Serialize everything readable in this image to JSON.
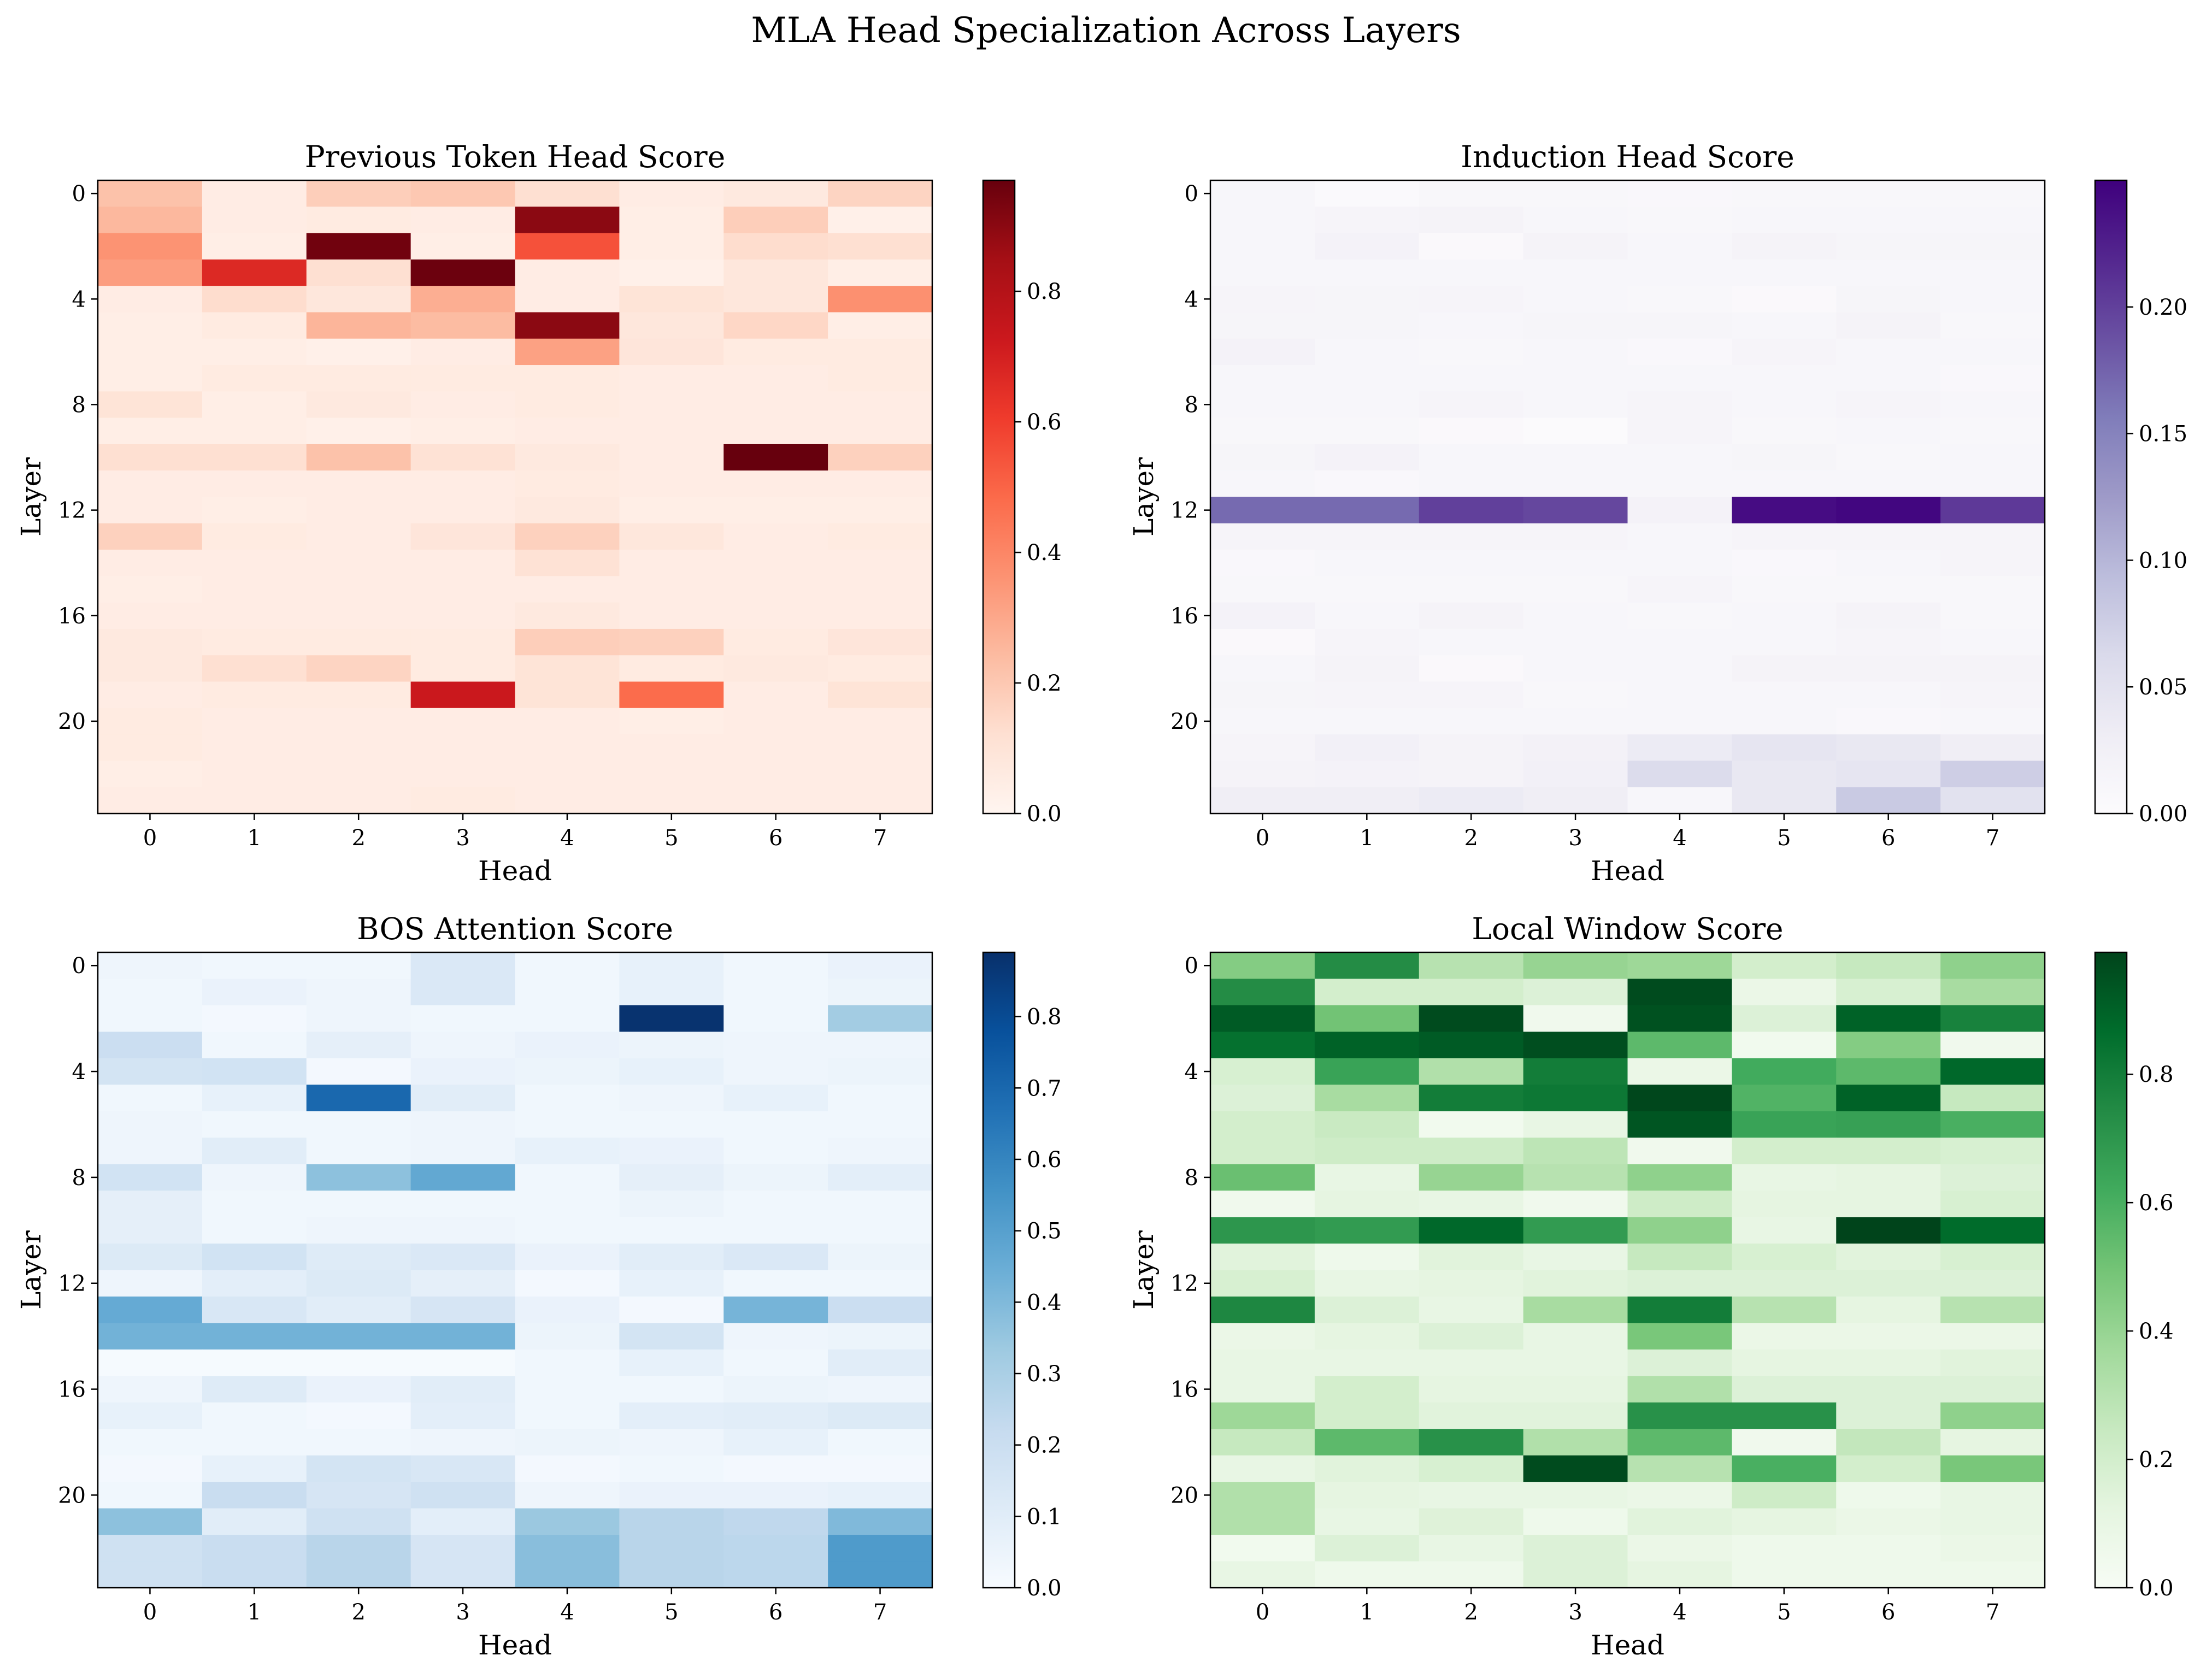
{
  "figure_title": "MLA Head Specialization Across Layers",
  "chart_data": [
    {
      "type": "heatmap",
      "title": "Previous Token Head Score",
      "xlabel": "Head",
      "ylabel": "Layer",
      "colormap": "Reds",
      "colormap_stops": [
        "#fff5f0",
        "#fee0d2",
        "#fcbba1",
        "#fc9272",
        "#fb6a4a",
        "#ef3b2c",
        "#cb181d",
        "#a50f15",
        "#67000d"
      ],
      "clim": [
        0,
        0.97
      ],
      "x_ticks": [
        "0",
        "1",
        "2",
        "3",
        "4",
        "5",
        "6",
        "7"
      ],
      "y_ticks": [
        "0",
        "4",
        "8",
        "12",
        "16",
        "20"
      ],
      "colorbar_ticks": [
        "0.0",
        "0.2",
        "0.4",
        "0.6",
        "0.8"
      ],
      "values": [
        [
          0.22,
          0.05,
          0.18,
          0.2,
          0.12,
          0.05,
          0.07,
          0.16
        ],
        [
          0.25,
          0.05,
          0.06,
          0.05,
          0.9,
          0.04,
          0.18,
          0.03
        ],
        [
          0.36,
          0.04,
          0.95,
          0.04,
          0.55,
          0.04,
          0.13,
          0.12
        ],
        [
          0.33,
          0.67,
          0.12,
          0.96,
          0.05,
          0.03,
          0.08,
          0.04
        ],
        [
          0.05,
          0.13,
          0.08,
          0.28,
          0.05,
          0.1,
          0.08,
          0.37
        ],
        [
          0.04,
          0.06,
          0.26,
          0.24,
          0.9,
          0.08,
          0.15,
          0.04
        ],
        [
          0.04,
          0.04,
          0.03,
          0.05,
          0.32,
          0.09,
          0.06,
          0.06
        ],
        [
          0.04,
          0.06,
          0.06,
          0.06,
          0.06,
          0.05,
          0.05,
          0.06
        ],
        [
          0.1,
          0.04,
          0.07,
          0.05,
          0.06,
          0.05,
          0.05,
          0.05
        ],
        [
          0.04,
          0.04,
          0.03,
          0.04,
          0.05,
          0.05,
          0.05,
          0.05
        ],
        [
          0.12,
          0.12,
          0.22,
          0.11,
          0.07,
          0.05,
          0.97,
          0.17
        ],
        [
          0.05,
          0.05,
          0.05,
          0.05,
          0.06,
          0.05,
          0.05,
          0.05
        ],
        [
          0.05,
          0.04,
          0.05,
          0.05,
          0.07,
          0.04,
          0.04,
          0.04
        ],
        [
          0.17,
          0.06,
          0.05,
          0.09,
          0.17,
          0.08,
          0.05,
          0.06
        ],
        [
          0.05,
          0.05,
          0.05,
          0.05,
          0.11,
          0.05,
          0.05,
          0.05
        ],
        [
          0.04,
          0.05,
          0.05,
          0.05,
          0.05,
          0.05,
          0.05,
          0.05
        ],
        [
          0.05,
          0.05,
          0.05,
          0.05,
          0.07,
          0.05,
          0.05,
          0.05
        ],
        [
          0.07,
          0.06,
          0.06,
          0.06,
          0.18,
          0.17,
          0.06,
          0.09
        ],
        [
          0.07,
          0.12,
          0.16,
          0.06,
          0.1,
          0.06,
          0.07,
          0.06
        ],
        [
          0.05,
          0.06,
          0.06,
          0.73,
          0.1,
          0.48,
          0.05,
          0.1
        ],
        [
          0.06,
          0.05,
          0.05,
          0.05,
          0.05,
          0.04,
          0.05,
          0.05
        ],
        [
          0.06,
          0.05,
          0.05,
          0.05,
          0.05,
          0.05,
          0.05,
          0.05
        ],
        [
          0.04,
          0.05,
          0.05,
          0.05,
          0.05,
          0.05,
          0.05,
          0.05
        ],
        [
          0.05,
          0.05,
          0.05,
          0.06,
          0.05,
          0.05,
          0.05,
          0.05
        ]
      ]
    },
    {
      "type": "heatmap",
      "title": "Induction Head Score",
      "xlabel": "Head",
      "ylabel": "Layer",
      "colormap": "Purples",
      "colormap_stops": [
        "#fcfbfd",
        "#efedf5",
        "#dadaeb",
        "#bcbddc",
        "#9e9ac8",
        "#807dba",
        "#6a51a3",
        "#54278f",
        "#3f007d"
      ],
      "clim": [
        0,
        0.25
      ],
      "x_ticks": [
        "0",
        "1",
        "2",
        "3",
        "4",
        "5",
        "6",
        "7"
      ],
      "y_ticks": [
        "0",
        "4",
        "8",
        "12",
        "16",
        "20"
      ],
      "colorbar_ticks": [
        "0.00",
        "0.05",
        "0.10",
        "0.15",
        "0.20"
      ],
      "values": [
        [
          0.012,
          0.005,
          0.01,
          0.01,
          0.008,
          0.01,
          0.01,
          0.01
        ],
        [
          0.012,
          0.015,
          0.018,
          0.012,
          0.01,
          0.012,
          0.012,
          0.012
        ],
        [
          0.012,
          0.02,
          0.006,
          0.018,
          0.012,
          0.018,
          0.014,
          0.014
        ],
        [
          0.012,
          0.012,
          0.012,
          0.012,
          0.012,
          0.012,
          0.012,
          0.012
        ],
        [
          0.015,
          0.014,
          0.015,
          0.012,
          0.01,
          0.006,
          0.014,
          0.012
        ],
        [
          0.014,
          0.014,
          0.012,
          0.014,
          0.014,
          0.012,
          0.018,
          0.01
        ],
        [
          0.02,
          0.012,
          0.01,
          0.012,
          0.008,
          0.015,
          0.012,
          0.012
        ],
        [
          0.012,
          0.012,
          0.012,
          0.012,
          0.012,
          0.012,
          0.012,
          0.008
        ],
        [
          0.012,
          0.012,
          0.015,
          0.012,
          0.015,
          0.012,
          0.015,
          0.012
        ],
        [
          0.01,
          0.01,
          0.006,
          0.002,
          0.015,
          0.01,
          0.012,
          0.01
        ],
        [
          0.014,
          0.02,
          0.012,
          0.012,
          0.012,
          0.014,
          0.01,
          0.012
        ],
        [
          0.012,
          0.008,
          0.012,
          0.012,
          0.012,
          0.012,
          0.012,
          0.012
        ],
        [
          0.17,
          0.17,
          0.2,
          0.195,
          0.02,
          0.24,
          0.245,
          0.205
        ],
        [
          0.015,
          0.015,
          0.015,
          0.015,
          0.012,
          0.015,
          0.015,
          0.015
        ],
        [
          0.008,
          0.012,
          0.012,
          0.012,
          0.012,
          0.008,
          0.012,
          0.015
        ],
        [
          0.01,
          0.01,
          0.01,
          0.01,
          0.015,
          0.01,
          0.01,
          0.01
        ],
        [
          0.02,
          0.012,
          0.018,
          0.012,
          0.01,
          0.012,
          0.018,
          0.01
        ],
        [
          0.006,
          0.015,
          0.012,
          0.012,
          0.012,
          0.012,
          0.015,
          0.012
        ],
        [
          0.012,
          0.018,
          0.006,
          0.012,
          0.012,
          0.018,
          0.018,
          0.018
        ],
        [
          0.014,
          0.015,
          0.015,
          0.01,
          0.012,
          0.012,
          0.012,
          0.015
        ],
        [
          0.012,
          0.012,
          0.012,
          0.012,
          0.012,
          0.012,
          0.008,
          0.012
        ],
        [
          0.015,
          0.025,
          0.018,
          0.022,
          0.035,
          0.045,
          0.04,
          0.03
        ],
        [
          0.018,
          0.02,
          0.018,
          0.025,
          0.06,
          0.04,
          0.045,
          0.075
        ],
        [
          0.03,
          0.03,
          0.035,
          0.03,
          0.012,
          0.04,
          0.08,
          0.05
        ]
      ]
    },
    {
      "type": "heatmap",
      "title": "BOS Attention Score",
      "xlabel": "Head",
      "ylabel": "Layer",
      "colormap": "Blues",
      "colormap_stops": [
        "#f7fbff",
        "#deebf7",
        "#c6dbef",
        "#9ecae1",
        "#6baed6",
        "#4292c6",
        "#2171b5",
        "#08519c",
        "#08306b"
      ],
      "clim": [
        0,
        0.89
      ],
      "x_ticks": [
        "0",
        "1",
        "2",
        "3",
        "4",
        "5",
        "6",
        "7"
      ],
      "y_ticks": [
        "0",
        "4",
        "8",
        "12",
        "16",
        "20"
      ],
      "colorbar_ticks": [
        "0.0",
        "0.1",
        "0.2",
        "0.3",
        "0.4",
        "0.5",
        "0.6",
        "0.7",
        "0.8"
      ],
      "values": [
        [
          0.04,
          0.03,
          0.03,
          0.13,
          0.03,
          0.07,
          0.03,
          0.06
        ],
        [
          0.03,
          0.06,
          0.04,
          0.13,
          0.03,
          0.07,
          0.03,
          0.05
        ],
        [
          0.03,
          0.02,
          0.04,
          0.03,
          0.03,
          0.88,
          0.03,
          0.32
        ],
        [
          0.2,
          0.03,
          0.08,
          0.04,
          0.06,
          0.05,
          0.04,
          0.04
        ],
        [
          0.16,
          0.17,
          0.02,
          0.06,
          0.05,
          0.07,
          0.04,
          0.05
        ],
        [
          0.03,
          0.07,
          0.7,
          0.1,
          0.03,
          0.04,
          0.07,
          0.03
        ],
        [
          0.04,
          0.03,
          0.03,
          0.04,
          0.03,
          0.03,
          0.03,
          0.03
        ],
        [
          0.04,
          0.1,
          0.03,
          0.04,
          0.07,
          0.06,
          0.03,
          0.04
        ],
        [
          0.17,
          0.04,
          0.37,
          0.47,
          0.03,
          0.08,
          0.05,
          0.09
        ],
        [
          0.08,
          0.03,
          0.03,
          0.03,
          0.03,
          0.05,
          0.03,
          0.03
        ],
        [
          0.08,
          0.03,
          0.04,
          0.04,
          0.03,
          0.03,
          0.03,
          0.03
        ],
        [
          0.12,
          0.17,
          0.11,
          0.13,
          0.06,
          0.1,
          0.13,
          0.05
        ],
        [
          0.04,
          0.09,
          0.12,
          0.08,
          0.02,
          0.07,
          0.03,
          0.03
        ],
        [
          0.46,
          0.14,
          0.1,
          0.15,
          0.06,
          0.02,
          0.42,
          0.2
        ],
        [
          0.43,
          0.43,
          0.43,
          0.43,
          0.05,
          0.16,
          0.04,
          0.05
        ],
        [
          0.01,
          0.01,
          0.01,
          0.01,
          0.03,
          0.07,
          0.03,
          0.1
        ],
        [
          0.04,
          0.11,
          0.06,
          0.1,
          0.03,
          0.03,
          0.05,
          0.04
        ],
        [
          0.07,
          0.03,
          0.02,
          0.09,
          0.03,
          0.09,
          0.1,
          0.12
        ],
        [
          0.03,
          0.03,
          0.03,
          0.04,
          0.05,
          0.04,
          0.07,
          0.03
        ],
        [
          0.02,
          0.07,
          0.16,
          0.14,
          0.02,
          0.03,
          0.02,
          0.02
        ],
        [
          0.03,
          0.21,
          0.15,
          0.18,
          0.04,
          0.06,
          0.06,
          0.07
        ],
        [
          0.37,
          0.1,
          0.18,
          0.09,
          0.34,
          0.26,
          0.24,
          0.4
        ],
        [
          0.18,
          0.21,
          0.26,
          0.15,
          0.38,
          0.26,
          0.25,
          0.52
        ],
        [
          0.18,
          0.21,
          0.26,
          0.15,
          0.38,
          0.26,
          0.25,
          0.52
        ]
      ]
    },
    {
      "type": "heatmap",
      "title": "Local Window Score",
      "xlabel": "Head",
      "ylabel": "Layer",
      "colormap": "Greens",
      "colormap_stops": [
        "#f7fcf5",
        "#e5f5e0",
        "#c7e9c0",
        "#a1d99b",
        "#74c476",
        "#41ab5d",
        "#238b45",
        "#006d2c",
        "#00441b"
      ],
      "clim": [
        0,
        0.99
      ],
      "x_ticks": [
        "0",
        "1",
        "2",
        "3",
        "4",
        "5",
        "6",
        "7"
      ],
      "y_ticks": [
        "0",
        "4",
        "8",
        "12",
        "16",
        "20"
      ],
      "colorbar_ticks": [
        "0.0",
        "0.2",
        "0.4",
        "0.6",
        "0.8"
      ],
      "values": [
        [
          0.45,
          0.74,
          0.3,
          0.4,
          0.38,
          0.2,
          0.25,
          0.42
        ],
        [
          0.74,
          0.2,
          0.2,
          0.16,
          0.97,
          0.08,
          0.18,
          0.35
        ],
        [
          0.92,
          0.5,
          0.97,
          0.05,
          0.95,
          0.16,
          0.9,
          0.78
        ],
        [
          0.85,
          0.9,
          0.92,
          0.96,
          0.55,
          0.04,
          0.45,
          0.05
        ],
        [
          0.18,
          0.65,
          0.32,
          0.8,
          0.08,
          0.62,
          0.55,
          0.88
        ],
        [
          0.16,
          0.35,
          0.8,
          0.82,
          0.98,
          0.58,
          0.9,
          0.25
        ],
        [
          0.2,
          0.24,
          0.04,
          0.1,
          0.94,
          0.65,
          0.66,
          0.6
        ],
        [
          0.2,
          0.22,
          0.22,
          0.28,
          0.05,
          0.2,
          0.2,
          0.18
        ],
        [
          0.52,
          0.1,
          0.4,
          0.3,
          0.42,
          0.1,
          0.12,
          0.16
        ],
        [
          0.05,
          0.12,
          0.1,
          0.05,
          0.22,
          0.12,
          0.12,
          0.18
        ],
        [
          0.7,
          0.68,
          0.88,
          0.68,
          0.42,
          0.1,
          0.99,
          0.87
        ],
        [
          0.14,
          0.06,
          0.14,
          0.1,
          0.25,
          0.18,
          0.14,
          0.18
        ],
        [
          0.18,
          0.1,
          0.12,
          0.14,
          0.16,
          0.16,
          0.16,
          0.16
        ],
        [
          0.76,
          0.16,
          0.1,
          0.35,
          0.8,
          0.3,
          0.12,
          0.3
        ],
        [
          0.08,
          0.12,
          0.16,
          0.1,
          0.48,
          0.08,
          0.08,
          0.08
        ],
        [
          0.1,
          0.1,
          0.1,
          0.1,
          0.16,
          0.12,
          0.12,
          0.14
        ],
        [
          0.1,
          0.2,
          0.12,
          0.12,
          0.32,
          0.16,
          0.16,
          0.16
        ],
        [
          0.38,
          0.2,
          0.14,
          0.14,
          0.72,
          0.72,
          0.16,
          0.42
        ],
        [
          0.25,
          0.55,
          0.72,
          0.32,
          0.55,
          0.05,
          0.26,
          0.12
        ],
        [
          0.1,
          0.14,
          0.18,
          0.97,
          0.3,
          0.6,
          0.2,
          0.48
        ],
        [
          0.32,
          0.12,
          0.1,
          0.1,
          0.08,
          0.22,
          0.06,
          0.1
        ],
        [
          0.32,
          0.1,
          0.15,
          0.06,
          0.14,
          0.12,
          0.08,
          0.1
        ],
        [
          0.04,
          0.16,
          0.1,
          0.16,
          0.08,
          0.06,
          0.06,
          0.08
        ],
        [
          0.1,
          0.06,
          0.06,
          0.16,
          0.12,
          0.06,
          0.06,
          0.06
        ]
      ]
    }
  ]
}
